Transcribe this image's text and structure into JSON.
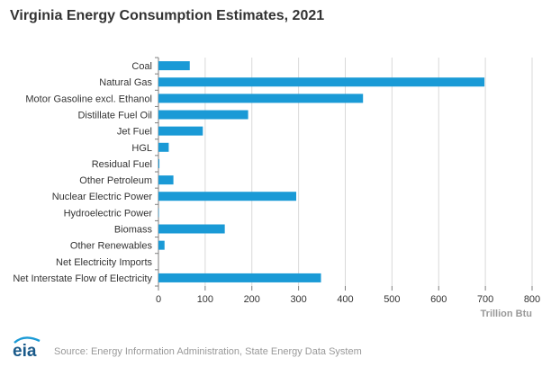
{
  "logo_text": "eia",
  "colors": {
    "bar": "#1a9ad6",
    "grid": "#d9d9d9",
    "axis": "#7f7f7f",
    "logo": "#1a5a8a",
    "logo_arc": "#1a9ad6"
  },
  "source": "Source: Energy Information Administration, State Energy Data System",
  "chart_data": {
    "type": "bar",
    "orientation": "horizontal",
    "title": "Virginia Energy Consumption Estimates, 2021",
    "xlabel": "Trillion Btu",
    "ylabel": "",
    "xlim": [
      0,
      800
    ],
    "xticks": [
      0,
      100,
      200,
      300,
      400,
      500,
      600,
      700,
      800
    ],
    "grid": true,
    "categories": [
      "Coal",
      "Natural Gas",
      "Motor Gasoline excl. Ethanol",
      "Distillate Fuel Oil",
      "Jet Fuel",
      "HGL",
      "Residual Fuel",
      "Other Petroleum",
      "Nuclear Electric Power",
      "Hydroelectric Power",
      "Biomass",
      "Other Renewables",
      "Net Electricity Imports",
      "Net Interstate Flow of Electricity"
    ],
    "values": [
      67,
      698,
      438,
      192,
      95,
      22,
      2,
      32,
      295,
      1,
      142,
      13,
      0,
      348
    ]
  }
}
